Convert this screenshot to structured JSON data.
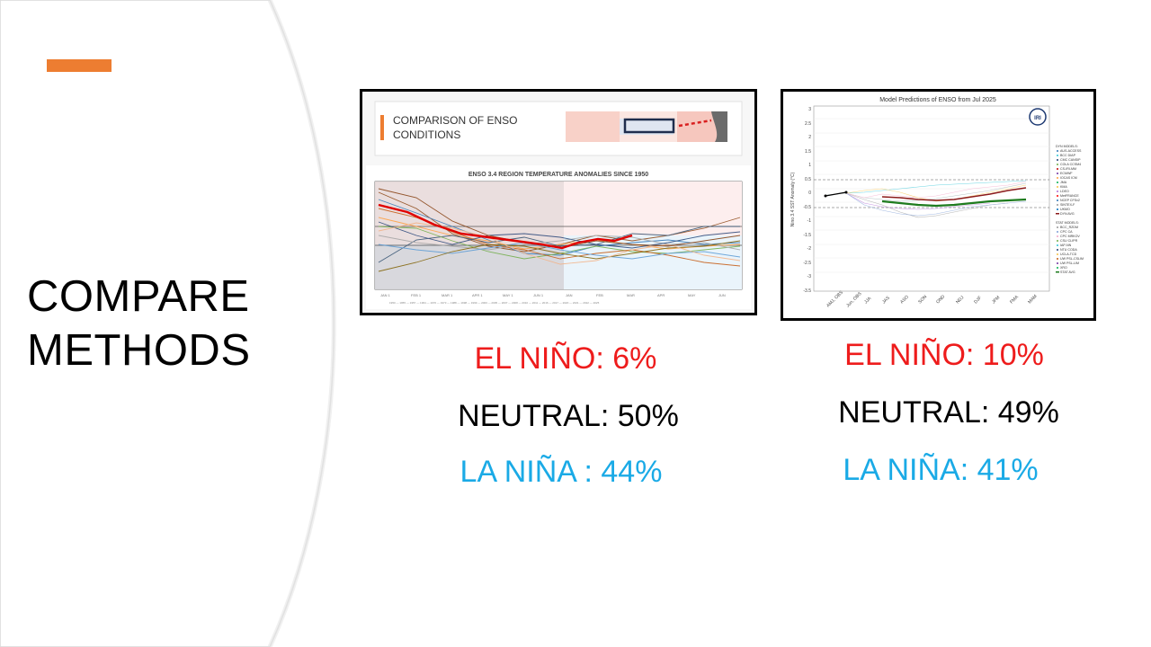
{
  "slide": {
    "title_line1": "COMPARE",
    "title_line2": "METHODS",
    "accent_color": "#ED7D31"
  },
  "left_image": {
    "header_title_line1": "COMPARISON OF ENSO",
    "header_title_line2": "CONDITIONS",
    "chart_title": "ENSO 3.4 REGION TEMPERATURE ANOMALIES SINCE 1950"
  },
  "right_image": {
    "chart_title": "Model Predictions of ENSO from Jul 2025",
    "logo_text": "IRI",
    "y_axis_label": "Nino 3.4 SST Anomaly (°C)",
    "x_ticks": [
      "AMJ, OBS",
      "Jun, OBS",
      "JJA",
      "JAS",
      "ASO",
      "SON",
      "OND",
      "NDJ",
      "DJF",
      "JFM",
      "FMA",
      "MAM"
    ],
    "y_ticks": [
      "3",
      "2.5",
      "2",
      "1.5",
      "1",
      "0.5",
      "0",
      "-0.5",
      "-1",
      "-1.5",
      "-2",
      "-2.5",
      "-3",
      "-3.5"
    ],
    "legend_dyn": [
      "DYN MODELS:",
      "AUS-ACCESS",
      "BCC DIAP",
      "CMC CANSIP",
      "COLA CCSM4",
      "CS-IRI-MM",
      "ECMWF",
      "IOCAS ICM",
      "JMA",
      "KMA",
      "LDEO",
      "MetFRANCE",
      "NCEP CFSv2",
      "SINTEX-F",
      "UKMO",
      "DYN AVG"
    ],
    "legend_stat": [
      "STAT MODELS:",
      "BCC_RZDM",
      "CPC CA",
      "CPC MRKOV",
      "CSU CLIPR",
      "IAP-NN",
      "NTU CODA",
      "UCLA-TCD",
      "UW PSL-CSLIM",
      "UW PSL-LIM",
      "XRO",
      "STAT AVG"
    ]
  },
  "left_stats": {
    "el_nino": "EL NIÑO: 6%",
    "neutral": "NEUTRAL: 50%",
    "la_nina": "LA NIÑA : 44%"
  },
  "right_stats": {
    "el_nino": "EL NIÑO: 10%",
    "neutral": "NEUTRAL: 49%",
    "la_nina": "LA NIÑA: 41%"
  },
  "colors": {
    "el_nino": "#EE1C1C",
    "neutral": "#000000",
    "la_nina": "#1AAAE6"
  }
}
